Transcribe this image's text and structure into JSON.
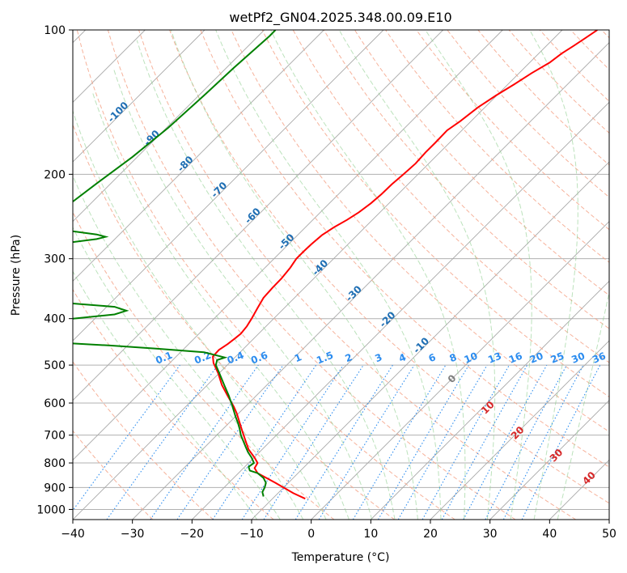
{
  "chart_data": {
    "type": "line",
    "subtype": "skew-T log-P diagram",
    "title": "wetPf2_GN04.2025.348.00.09.E10",
    "xlabel": "Temperature (°C)",
    "ylabel": "Pressure (hPa)",
    "xlim": [
      -40,
      50
    ],
    "ylim": [
      1050,
      100
    ],
    "y_scale": "log",
    "grid": true,
    "x_ticks": [
      "−40",
      "−30",
      "−20",
      "−10",
      "0",
      "10",
      "20",
      "30",
      "40",
      "50"
    ],
    "y_ticks": [
      "100",
      "200",
      "300",
      "400",
      "500",
      "600",
      "700",
      "800",
      "900",
      "1000"
    ],
    "y_tick_values": [
      100,
      200,
      300,
      400,
      500,
      600,
      700,
      800,
      900,
      1000
    ],
    "isotherm_labels": [
      "-100",
      "-90",
      "-80",
      "-70",
      "-60",
      "-50",
      "-40",
      "-30",
      "-20",
      "-10"
    ],
    "isotherm_label_values": [
      -100,
      -90,
      -80,
      -70,
      -60,
      -50,
      -40,
      -30,
      -20,
      -10
    ],
    "mixing_ratio_labels": [
      "0.1",
      "0.2",
      "0.4",
      "0.6",
      "1",
      "1.5",
      "2",
      "3",
      "4",
      "6",
      "8",
      "10",
      "13",
      "16",
      "20",
      "25",
      "30",
      "36"
    ],
    "mixing_ratio_label_temps": [
      -24.5,
      -18,
      -12.5,
      -8.5,
      -2,
      2.5,
      6.5,
      11.5,
      15.5,
      20.5,
      24,
      27,
      31,
      34.5,
      38,
      41.5,
      45,
      48.5
    ],
    "dry_adiabat_labels": [
      "0",
      "10",
      "20",
      "30",
      "40"
    ],
    "dry_adiabat_label_points": [
      [
        24,
        540
      ],
      [
        30,
        620
      ],
      [
        35,
        700
      ],
      [
        41.5,
        780
      ],
      [
        47,
        870
      ]
    ],
    "series": [
      {
        "name": "",
        "color": "#ff0000",
        "points": [
          [
            -1,
            950
          ],
          [
            -3,
            925
          ],
          [
            -6,
            880
          ],
          [
            -9,
            840
          ],
          [
            -9.5,
            820
          ],
          [
            -9,
            800
          ],
          [
            -9.5,
            780
          ],
          [
            -10.5,
            750
          ],
          [
            -11,
            720
          ],
          [
            -11.5,
            690
          ],
          [
            -12,
            660
          ],
          [
            -12.5,
            630
          ],
          [
            -13,
            610
          ],
          [
            -14,
            580
          ],
          [
            -15,
            550
          ],
          [
            -15.6,
            520
          ],
          [
            -16.4,
            495
          ],
          [
            -16.5,
            480
          ],
          [
            -15.5,
            465
          ],
          [
            -14,
            452
          ],
          [
            -12.8,
            440
          ],
          [
            -11.8,
            430
          ],
          [
            -10.8,
            415
          ],
          [
            -10,
            400
          ],
          [
            -9,
            380
          ],
          [
            -8,
            362
          ],
          [
            -6.5,
            345
          ],
          [
            -5,
            330
          ],
          [
            -3.5,
            313
          ],
          [
            -2.5,
            300
          ],
          [
            -1.3,
            290
          ],
          [
            0,
            280
          ],
          [
            1.8,
            268
          ],
          [
            3.8,
            258
          ],
          [
            6,
            249
          ],
          [
            8,
            240
          ],
          [
            10,
            230
          ],
          [
            11.8,
            220
          ],
          [
            13.5,
            210
          ],
          [
            15.5,
            200
          ],
          [
            17.5,
            190
          ],
          [
            19.2,
            180
          ],
          [
            20.8,
            172
          ],
          [
            22.8,
            162
          ],
          [
            25,
            155
          ],
          [
            28,
            145
          ],
          [
            31,
            137
          ],
          [
            34,
            130
          ],
          [
            37,
            123
          ],
          [
            40,
            117
          ],
          [
            42,
            112
          ],
          [
            44,
            108
          ],
          [
            46,
            104
          ],
          [
            47.5,
            101
          ],
          [
            48,
            100
          ]
        ]
      },
      {
        "name": "",
        "color": "#008000",
        "points": [
          [
            -8,
            940
          ],
          [
            -8.2,
            920
          ],
          [
            -7.8,
            900
          ],
          [
            -7.6,
            880
          ],
          [
            -8,
            860
          ],
          [
            -9,
            840
          ],
          [
            -10.3,
            830
          ],
          [
            -10.5,
            815
          ],
          [
            -9.6,
            800
          ],
          [
            -10,
            780
          ],
          [
            -10.6,
            760
          ],
          [
            -11,
            740
          ],
          [
            -11.4,
            720
          ],
          [
            -11.8,
            700
          ],
          [
            -12,
            680
          ],
          [
            -12.3,
            660
          ],
          [
            -12.7,
            640
          ],
          [
            -13.2,
            610
          ],
          [
            -13.8,
            580
          ],
          [
            -14.6,
            550
          ],
          [
            -15.4,
            520
          ],
          [
            -16,
            500
          ],
          [
            -15.8,
            488
          ],
          [
            -14.5,
            482
          ],
          [
            -18,
            470
          ],
          [
            -26,
            462
          ],
          [
            -34,
            455
          ],
          [
            -41,
            450
          ]
        ],
        "extra_segments": [
          [
            [
              -40,
              263
            ],
            [
              -36,
              267
            ],
            [
              -34.5,
              270
            ],
            [
              -36,
              273
            ],
            [
              -40,
              277
            ]
          ],
          [
            [
              -40,
              372
            ],
            [
              -33,
              378
            ],
            [
              -31,
              385
            ],
            [
              -33,
              392
            ],
            [
              -40,
              400
            ]
          ],
          [
            [
              -40,
              228
            ],
            [
              -36,
              209
            ],
            [
              -30,
              184
            ],
            [
              -24,
              160
            ],
            [
              -18,
              137
            ],
            [
              -13,
              120
            ],
            [
              -7,
              103
            ],
            [
              -6,
              100
            ]
          ]
        ]
      }
    ],
    "colors": {
      "temperature": "#ff0000",
      "dewpoint": "#008000",
      "isotherm": "#1f6fb4",
      "mixing_ratio": "#2b8cef",
      "dry_adiabat": "#f08060",
      "moist_adiabat": "#7fbf7f",
      "grid": "#b0b0b0"
    }
  }
}
